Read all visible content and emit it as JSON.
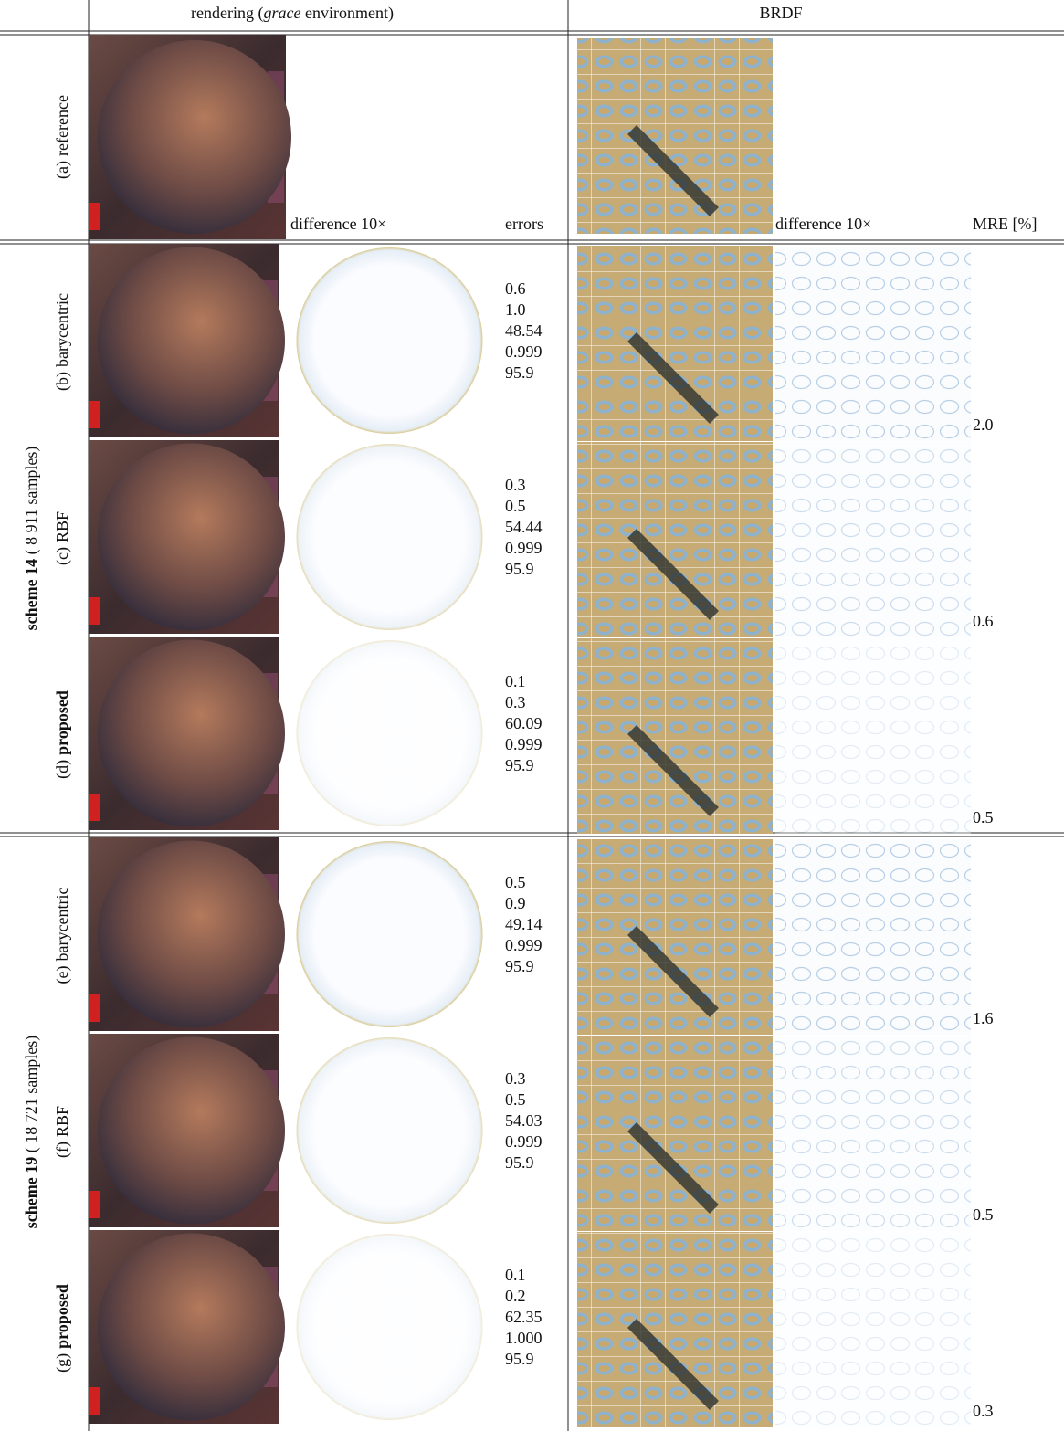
{
  "header": {
    "rendering_prefix": "rendering (",
    "rendering_env": "grace",
    "rendering_suffix": " environment)",
    "brdf": "BRDF"
  },
  "subheaders": {
    "difference": "difference 10×",
    "errors": "errors",
    "brdf_difference": "difference 10×",
    "mre": "MRE [%]"
  },
  "reference": {
    "letter": "(a)",
    "method": "reference"
  },
  "groups": [
    {
      "scheme": "scheme 14",
      "samples": " ( 8 911 samples)",
      "rows": [
        {
          "letter": "(b)",
          "method": "barycentric",
          "emphasis": false,
          "errors": [
            "0.6",
            "1.0",
            "48.54",
            "0.999",
            "95.9"
          ],
          "mre": "2.0"
        },
        {
          "letter": "(c)",
          "method": "RBF",
          "emphasis": false,
          "errors": [
            "0.3",
            "0.5",
            "54.44",
            "0.999",
            "95.9"
          ],
          "mre": "0.6"
        },
        {
          "letter": "(d)",
          "method": "proposed",
          "emphasis": true,
          "errors": [
            "0.1",
            "0.3",
            "60.09",
            "0.999",
            "95.9"
          ],
          "mre": "0.5"
        }
      ]
    },
    {
      "scheme": "scheme 19",
      "samples": " ( 18 721 samples)",
      "rows": [
        {
          "letter": "(e)",
          "method": "barycentric",
          "emphasis": false,
          "errors": [
            "0.5",
            "0.9",
            "49.14",
            "0.999",
            "95.9"
          ],
          "mre": "1.6"
        },
        {
          "letter": "(f)",
          "method": "RBF",
          "emphasis": false,
          "errors": [
            "0.3",
            "0.5",
            "54.03",
            "0.999",
            "95.9"
          ],
          "mre": "0.5"
        },
        {
          "letter": "(g)",
          "method": "proposed",
          "emphasis": true,
          "errors": [
            "0.1",
            "0.2",
            "62.35",
            "1.000",
            "95.9"
          ],
          "mre": "0.3"
        }
      ]
    }
  ]
}
